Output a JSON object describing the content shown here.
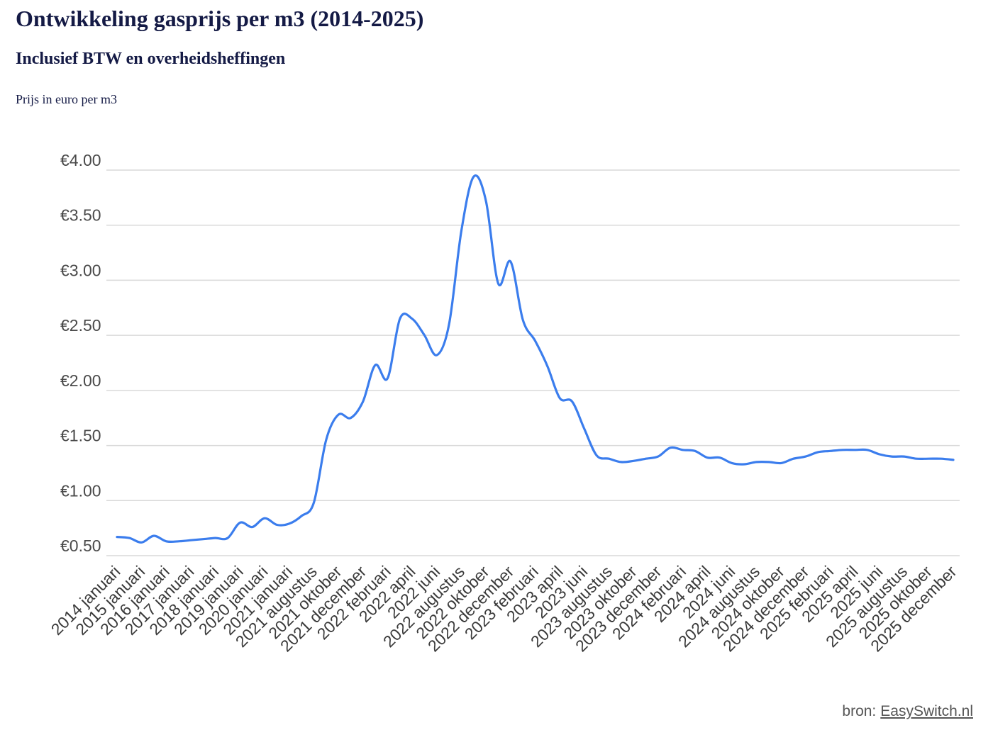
{
  "chart_data": {
    "type": "line",
    "title": "Ontwikkeling gasprijs per m3 (2014-2025)",
    "subtitle": "Inclusief BTW en overheidsheffingen",
    "ylabel": "Prijs in euro per m3",
    "xlabel": "",
    "ylim": [
      0.5,
      4.0
    ],
    "y_ticks": [
      4.0,
      3.5,
      3.0,
      2.5,
      2.0,
      1.5,
      1.0,
      0.5
    ],
    "y_tick_labels": [
      "€4.00",
      "€3.50",
      "€3.00",
      "€2.50",
      "€2.00",
      "€1.50",
      "€1.00",
      "€0.50"
    ],
    "grid": true,
    "legend": "none",
    "curve": "smooth",
    "categories": [
      "2014 januari",
      "",
      "2015 januari",
      "",
      "2016 januari",
      "",
      "2017 januari",
      "",
      "2018 januari",
      "",
      "2019 januari",
      "",
      "2020 januari",
      "",
      "2021 januari",
      "",
      "2021 augustus",
      "",
      "2021 oktober",
      "",
      "2021 december",
      "",
      "2022 februari",
      "",
      "2022 april",
      "",
      "2022 juni",
      "",
      "2022 augustus",
      "",
      "2022 oktober",
      "",
      "2022 december",
      "",
      "2023 februari",
      "",
      "2023 april",
      "",
      "2023 juni",
      "",
      "2023 augustus",
      "",
      "2023 oktober",
      "",
      "2023 december",
      "",
      "2024 februari",
      "",
      "2024 april",
      "",
      "2024 juni",
      "",
      "2024 augustus",
      "",
      "2024 oktober",
      "",
      "2024 december",
      "",
      "2025 februari",
      "",
      "2025 april",
      "",
      "2025 juni",
      "",
      "2025 augustus",
      "",
      "2025 oktober",
      "",
      "2025 december"
    ],
    "values": [
      0.67,
      0.66,
      0.62,
      0.68,
      0.63,
      0.63,
      0.64,
      0.65,
      0.66,
      0.66,
      0.8,
      0.76,
      0.84,
      0.78,
      0.79,
      0.86,
      0.98,
      1.55,
      1.78,
      1.75,
      1.9,
      2.23,
      2.11,
      2.65,
      2.65,
      2.5,
      2.32,
      2.6,
      3.45,
      3.94,
      3.72,
      2.97,
      3.17,
      2.64,
      2.45,
      2.22,
      1.93,
      1.9,
      1.65,
      1.41,
      1.38,
      1.35,
      1.36,
      1.38,
      1.4,
      1.48,
      1.46,
      1.45,
      1.39,
      1.39,
      1.34,
      1.33,
      1.35,
      1.35,
      1.34,
      1.38,
      1.4,
      1.44,
      1.45,
      1.46,
      1.46,
      1.46,
      1.42,
      1.4,
      1.4,
      1.38,
      1.38,
      1.38,
      1.37
    ]
  },
  "source": {
    "label": "bron:",
    "link_text": "EasySwitch.nl"
  },
  "colors": {
    "text": "#141a45",
    "line": "#3b7ded",
    "grid": "#d9d9d9",
    "tick_text": "#4a4a4a",
    "source_text": "#555555"
  }
}
